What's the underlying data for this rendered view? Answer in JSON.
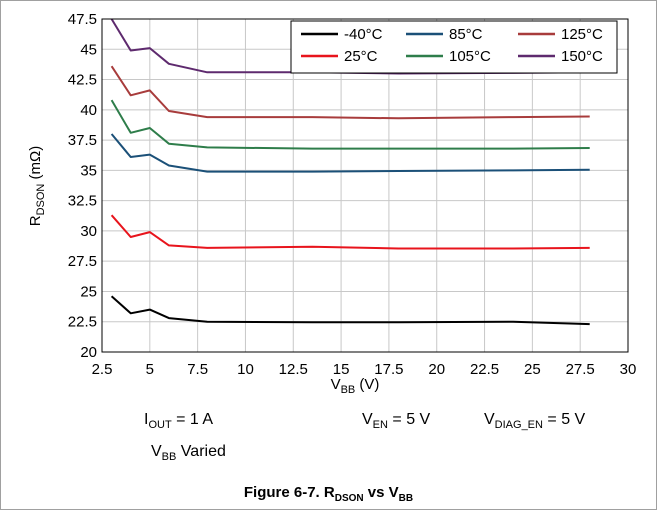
{
  "chart_data": {
    "type": "line",
    "title": "",
    "ylabel": {
      "main": "R",
      "sub": "DSON",
      "unit": " (mΩ)"
    },
    "xlabel": {
      "main": "V",
      "sub": "BB",
      "unit": " (V)"
    },
    "xlim": [
      2.5,
      30
    ],
    "ylim": [
      20,
      47.5
    ],
    "xticks": [
      2.5,
      5,
      7.5,
      10,
      12.5,
      15,
      17.5,
      20,
      22.5,
      25,
      27.5,
      30
    ],
    "xtick_labels": [
      "2.5",
      "5",
      "7.5",
      "10",
      "12.5",
      "15",
      "17.5",
      "20",
      "22.5",
      "25",
      "27.5",
      "30"
    ],
    "yticks": [
      20,
      22.5,
      25,
      27.5,
      30,
      32.5,
      35,
      37.5,
      40,
      42.5,
      45,
      47.5
    ],
    "ytick_labels": [
      "20",
      "22.5",
      "25",
      "27.5",
      "30",
      "32.5",
      "35",
      "37.5",
      "40",
      "42.5",
      "45",
      "47.5"
    ],
    "grid": true,
    "legend_position": "top-right",
    "series": [
      {
        "name": "-40°C",
        "color": "#000000",
        "x": [
          3,
          4,
          5,
          6,
          8,
          13.5,
          18,
          24,
          28
        ],
        "y": [
          24.6,
          23.2,
          23.5,
          22.8,
          22.5,
          22.45,
          22.45,
          22.5,
          22.3
        ]
      },
      {
        "name": "25°C",
        "color": "#e8141c",
        "x": [
          3,
          4,
          5,
          6,
          8,
          13.5,
          18,
          24,
          28
        ],
        "y": [
          31.3,
          29.5,
          29.9,
          28.8,
          28.6,
          28.7,
          28.55,
          28.55,
          28.6
        ]
      },
      {
        "name": "85°C",
        "color": "#1b5078",
        "x": [
          3,
          4,
          5,
          6,
          8,
          13.5,
          18,
          24,
          28
        ],
        "y": [
          38.0,
          36.1,
          36.3,
          35.4,
          34.9,
          34.9,
          34.95,
          35.0,
          35.05
        ]
      },
      {
        "name": "105°C",
        "color": "#2e7d4a",
        "x": [
          3,
          4,
          5,
          6,
          8,
          13.5,
          18,
          24,
          28
        ],
        "y": [
          40.8,
          38.1,
          38.5,
          37.2,
          36.9,
          36.8,
          36.8,
          36.8,
          36.85
        ]
      },
      {
        "name": "125°C",
        "color": "#a83c3c",
        "x": [
          3,
          4,
          5,
          6,
          8,
          13.5,
          18,
          24,
          28
        ],
        "y": [
          43.6,
          41.2,
          41.6,
          39.9,
          39.4,
          39.4,
          39.3,
          39.4,
          39.45
        ]
      },
      {
        "name": "150°C",
        "color": "#5e2a6e",
        "x": [
          3,
          4,
          5,
          6,
          8,
          13.5,
          18,
          24,
          28
        ],
        "y": [
          47.5,
          44.9,
          45.1,
          43.8,
          43.1,
          43.1,
          43.0,
          43.05,
          43.1
        ]
      }
    ]
  },
  "conditions": {
    "iout": {
      "main": "I",
      "sub": "OUT",
      "rest": " = 1 A"
    },
    "vbb": {
      "main": "V",
      "sub": "BB",
      "rest": " Varied"
    },
    "ven": {
      "main": "V",
      "sub": "EN",
      "rest": " = 5 V"
    },
    "vdiag": {
      "main": "V",
      "sub": "DIAG_EN",
      "rest": " = 5 V"
    }
  },
  "caption": {
    "prefix": "Figure 6-7. R",
    "sub1": "DSON",
    "mid": " vs V",
    "sub2": "BB"
  }
}
